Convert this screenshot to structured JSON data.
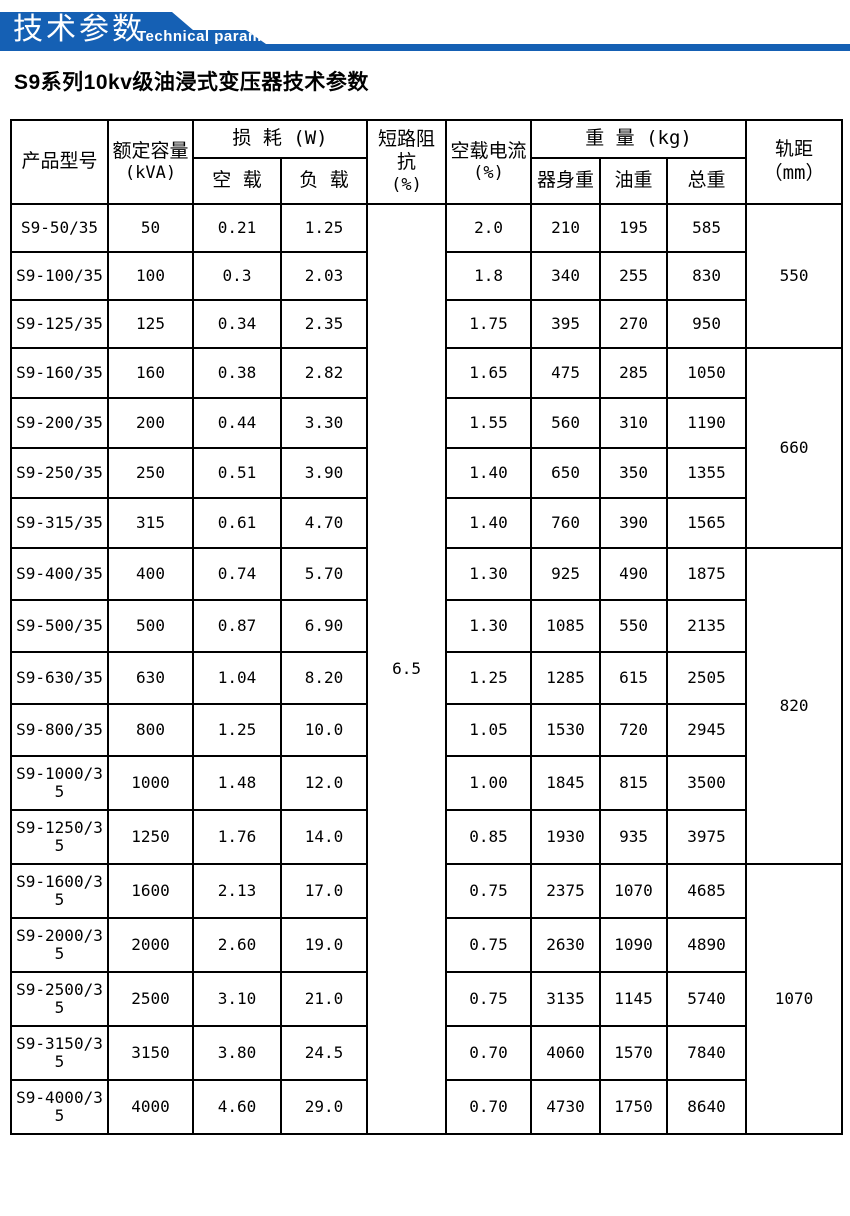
{
  "banner": {
    "title_cn": "技术参数",
    "title_en": "Technical parameter",
    "accent_color": "#1560b4"
  },
  "page_title": "S9系列10kv级油浸式变压器技术参数",
  "table": {
    "headers": {
      "model": "产品型号",
      "capacity": "额定容量",
      "capacity_unit": "(kVA)",
      "loss_group": "损 耗 (W)",
      "no_load_loss": "空 载",
      "load_loss": "负 载",
      "impedance": "短路阻抗",
      "impedance_unit": "(%)",
      "no_load_current": "空载电流",
      "no_load_current_unit": "(%)",
      "weight_group": "重 量 (kg)",
      "body_weight": "器身重",
      "oil_weight": "油重",
      "total_weight": "总重",
      "gauge": "轨距",
      "gauge_unit": "（mm）"
    },
    "short_circuit_impedance": "6.5",
    "gauge_groups": [
      {
        "value": "550",
        "row_span": 3
      },
      {
        "value": "660",
        "row_span": 4
      },
      {
        "value": "820",
        "row_span": 6
      },
      {
        "value": "1070",
        "row_span": 5
      }
    ],
    "rows": [
      {
        "model": "S9-50/35",
        "capacity": "50",
        "no_load_loss": "0.21",
        "load_loss": "1.25",
        "no_load_current": "2.0",
        "body_weight": "210",
        "oil_weight": "195",
        "total_weight": "585"
      },
      {
        "model": "S9-100/35",
        "capacity": "100",
        "no_load_loss": "0.3",
        "load_loss": "2.03",
        "no_load_current": "1.8",
        "body_weight": "340",
        "oil_weight": "255",
        "total_weight": "830"
      },
      {
        "model": "S9-125/35",
        "capacity": "125",
        "no_load_loss": "0.34",
        "load_loss": "2.35",
        "no_load_current": "1.75",
        "body_weight": "395",
        "oil_weight": "270",
        "total_weight": "950"
      },
      {
        "model": "S9-160/35",
        "capacity": "160",
        "no_load_loss": "0.38",
        "load_loss": "2.82",
        "no_load_current": "1.65",
        "body_weight": "475",
        "oil_weight": "285",
        "total_weight": "1050"
      },
      {
        "model": "S9-200/35",
        "capacity": "200",
        "no_load_loss": "0.44",
        "load_loss": "3.30",
        "no_load_current": "1.55",
        "body_weight": "560",
        "oil_weight": "310",
        "total_weight": "1190"
      },
      {
        "model": "S9-250/35",
        "capacity": "250",
        "no_load_loss": "0.51",
        "load_loss": "3.90",
        "no_load_current": "1.40",
        "body_weight": "650",
        "oil_weight": "350",
        "total_weight": "1355"
      },
      {
        "model": "S9-315/35",
        "capacity": "315",
        "no_load_loss": "0.61",
        "load_loss": "4.70",
        "no_load_current": "1.40",
        "body_weight": "760",
        "oil_weight": "390",
        "total_weight": "1565"
      },
      {
        "model": "S9-400/35",
        "capacity": "400",
        "no_load_loss": "0.74",
        "load_loss": "5.70",
        "no_load_current": "1.30",
        "body_weight": "925",
        "oil_weight": "490",
        "total_weight": "1875"
      },
      {
        "model": "S9-500/35",
        "capacity": "500",
        "no_load_loss": "0.87",
        "load_loss": "6.90",
        "no_load_current": "1.30",
        "body_weight": "1085",
        "oil_weight": "550",
        "total_weight": "2135"
      },
      {
        "model": "S9-630/35",
        "capacity": "630",
        "no_load_loss": "1.04",
        "load_loss": "8.20",
        "no_load_current": "1.25",
        "body_weight": "1285",
        "oil_weight": "615",
        "total_weight": "2505"
      },
      {
        "model": "S9-800/35",
        "capacity": "800",
        "no_load_loss": "1.25",
        "load_loss": "10.0",
        "no_load_current": "1.05",
        "body_weight": "1530",
        "oil_weight": "720",
        "total_weight": "2945"
      },
      {
        "model": "S9-1000/35",
        "capacity": "1000",
        "no_load_loss": "1.48",
        "load_loss": "12.0",
        "no_load_current": "1.00",
        "body_weight": "1845",
        "oil_weight": "815",
        "total_weight": "3500"
      },
      {
        "model": "S9-1250/35",
        "capacity": "1250",
        "no_load_loss": "1.76",
        "load_loss": "14.0",
        "no_load_current": "0.85",
        "body_weight": "1930",
        "oil_weight": "935",
        "total_weight": "3975"
      },
      {
        "model": "S9-1600/35",
        "capacity": "1600",
        "no_load_loss": "2.13",
        "load_loss": "17.0",
        "no_load_current": "0.75",
        "body_weight": "2375",
        "oil_weight": "1070",
        "total_weight": "4685"
      },
      {
        "model": "S9-2000/35",
        "capacity": "2000",
        "no_load_loss": "2.60",
        "load_loss": "19.0",
        "no_load_current": "0.75",
        "body_weight": "2630",
        "oil_weight": "1090",
        "total_weight": "4890"
      },
      {
        "model": "S9-2500/35",
        "capacity": "2500",
        "no_load_loss": "3.10",
        "load_loss": "21.0",
        "no_load_current": "0.75",
        "body_weight": "3135",
        "oil_weight": "1145",
        "total_weight": "5740"
      },
      {
        "model": "S9-3150/35",
        "capacity": "3150",
        "no_load_loss": "3.80",
        "load_loss": "24.5",
        "no_load_current": "0.70",
        "body_weight": "4060",
        "oil_weight": "1570",
        "total_weight": "7840"
      },
      {
        "model": "S9-4000/35",
        "capacity": "4000",
        "no_load_loss": "4.60",
        "load_loss": "29.0",
        "no_load_current": "0.70",
        "body_weight": "4730",
        "oil_weight": "1750",
        "total_weight": "8640"
      }
    ]
  }
}
